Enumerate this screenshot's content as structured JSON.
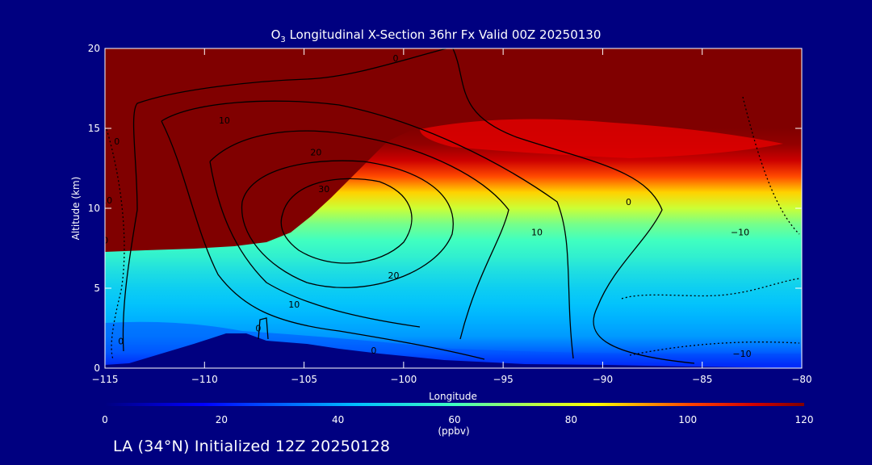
{
  "title": {
    "species_main": "O",
    "species_sub": "3",
    "rest": " Longitudinal X-Section 36hr  Fx Valid 00Z 20250130"
  },
  "colors": {
    "background": "#000080",
    "terrain": "#000080",
    "contour": "#000000",
    "text": "#ffffff"
  },
  "footer": "LA (34°N) Initialized 12Z 20250128",
  "chart_data": {
    "type": "heatmap",
    "title": "O3 Longitudinal X-Section 36hr  Fx Valid 00Z 20250130",
    "xlabel": "Longitude",
    "ylabel": "Altitude (km)",
    "xlim": [
      -115,
      -80
    ],
    "ylim": [
      0,
      20
    ],
    "x_ticks": [
      -115,
      -110,
      -105,
      -100,
      -95,
      -90,
      -85,
      -80
    ],
    "x_tick_labels": [
      "−115",
      "−110",
      "−105",
      "−100",
      "−95",
      "−90",
      "−85",
      "−80"
    ],
    "y_ticks": [
      0,
      5,
      10,
      15,
      20
    ],
    "y_tick_labels": [
      "0",
      "5",
      "10",
      "15",
      "20"
    ],
    "colorbar": {
      "label": "(ppbv)",
      "range": [
        0,
        120
      ],
      "ticks": [
        0,
        20,
        40,
        60,
        80,
        100,
        120
      ],
      "tick_labels": [
        "0",
        "20",
        "40",
        "60",
        "80",
        "100",
        "120"
      ]
    },
    "ozone_profile": [
      {
        "altitude": 0.2,
        "ppbv": 15
      },
      {
        "altitude": 1,
        "ppbv": 30
      },
      {
        "altitude": 2,
        "ppbv": 38
      },
      {
        "altitude": 3,
        "ppbv": 41
      },
      {
        "altitude": 4,
        "ppbv": 44
      },
      {
        "altitude": 5,
        "ppbv": 47
      },
      {
        "altitude": 6,
        "ppbv": 51
      },
      {
        "altitude": 7,
        "ppbv": 56
      },
      {
        "altitude": 8,
        "ppbv": 60
      },
      {
        "altitude": 9,
        "ppbv": 66
      },
      {
        "altitude": 10,
        "ppbv": 76
      },
      {
        "altitude": 11,
        "ppbv": 88
      },
      {
        "altitude": 12,
        "ppbv": 100
      },
      {
        "altitude": 13,
        "ppbv": 112
      },
      {
        "altitude": 14,
        "ppbv": 118
      },
      {
        "altitude": 15,
        "ppbv": 120
      }
    ],
    "contour_labels": [
      {
        "text": "0",
        "lon": -114.2,
        "alt": 1.5
      },
      {
        "text": "0",
        "lon": -114.4,
        "alt": 14.0
      },
      {
        "text": "0",
        "lon": -107.3,
        "alt": 2.3
      },
      {
        "text": "0",
        "lon": -101.5,
        "alt": 0.9
      },
      {
        "text": "0",
        "lon": -100.4,
        "alt": 19.2
      },
      {
        "text": "10",
        "lon": -109.0,
        "alt": 15.3
      },
      {
        "text": "10",
        "lon": -105.5,
        "alt": 3.8
      },
      {
        "text": "10",
        "lon": -93.3,
        "alt": 8.3
      },
      {
        "text": "20",
        "lon": -104.4,
        "alt": 13.3
      },
      {
        "text": "20",
        "lon": -100.5,
        "alt": 5.6
      },
      {
        "text": "30",
        "lon": -104.0,
        "alt": 11.0
      },
      {
        "text": "0",
        "lon": -88.7,
        "alt": 10.2
      },
      {
        "text": "−10",
        "lon": -115.1,
        "alt": 10.3
      },
      {
        "text": "−10",
        "lon": -115.3,
        "alt": 7.8
      },
      {
        "text": "−10",
        "lon": -83.1,
        "alt": 8.3
      },
      {
        "text": "−10",
        "lon": -83.0,
        "alt": 0.7
      }
    ]
  }
}
